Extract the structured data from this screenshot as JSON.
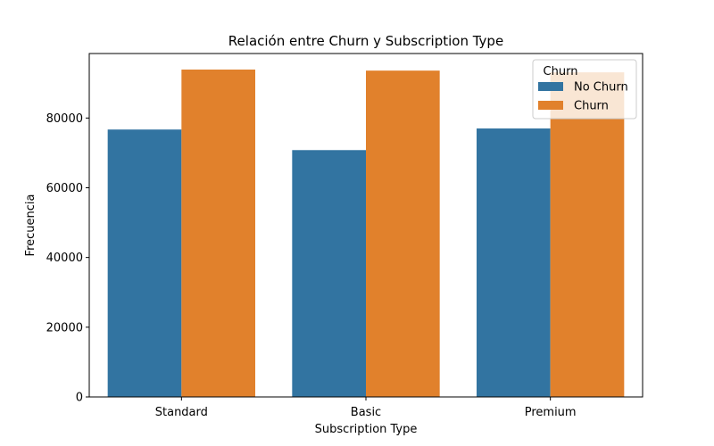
{
  "chart_data": {
    "type": "bar",
    "title": "Relación entre Churn y Subscription Type",
    "xlabel": "Subscription Type",
    "ylabel": "Frecuencia",
    "categories": [
      "Standard",
      "Basic",
      "Premium"
    ],
    "series": [
      {
        "name": "No Churn",
        "values": [
          76700,
          70800,
          77000
        ],
        "color": "#3274a1"
      },
      {
        "name": "Churn",
        "values": [
          93900,
          93600,
          93100
        ],
        "color": "#e1812c"
      }
    ],
    "ylim": [
      0,
      98500
    ],
    "yticks": [
      0,
      20000,
      40000,
      60000,
      80000
    ],
    "ytick_labels": [
      "0",
      "20000",
      "40000",
      "60000",
      "80000"
    ],
    "legend": {
      "title": "Churn",
      "placement": "top-right"
    },
    "grid": false
  }
}
